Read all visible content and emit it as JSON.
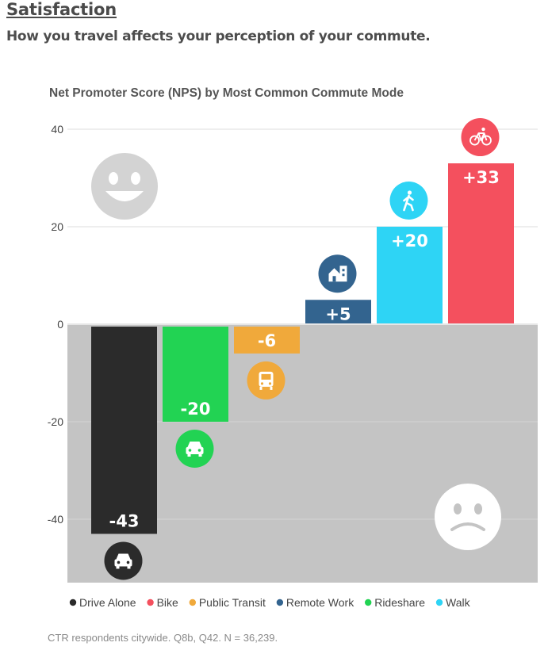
{
  "header": {
    "title": "Satisfaction",
    "subtitle": "How you travel affects your perception of your commute."
  },
  "footer": {
    "note": "CTR respondents citywide. Q8b, Q42. N = 36,239."
  },
  "chart_data": {
    "type": "bar",
    "title": "Net Promoter Score (NPS) by Most Common Commute Mode",
    "xlabel": "",
    "ylabel": "",
    "ylim": [
      -53,
      40
    ],
    "yticks": [
      40,
      20,
      0,
      -20,
      -40
    ],
    "grid": true,
    "negative_region_color": "#c4c4c4",
    "legend_position": "bottom",
    "categories": [
      "Drive Alone",
      "Rideshare",
      "Public Transit",
      "Remote Work",
      "Walk",
      "Bike"
    ],
    "values": [
      -43,
      -20,
      -6,
      5,
      20,
      33
    ],
    "value_labels": [
      "-43",
      "-20",
      "-6",
      "+5",
      "+20",
      "+33"
    ],
    "colors": [
      "#2b2b2b",
      "#22d353",
      "#f0a93b",
      "#33648f",
      "#2ed4f5",
      "#f4505e"
    ],
    "icons": [
      "car-icon",
      "rideshare-car-icon",
      "bus-icon",
      "home-office-icon",
      "walk-icon",
      "bike-icon"
    ],
    "legend": [
      {
        "label": "Drive Alone",
        "color": "#2b2b2b"
      },
      {
        "label": "Bike",
        "color": "#f4505e"
      },
      {
        "label": "Public Transit",
        "color": "#f0a93b"
      },
      {
        "label": "Remote Work",
        "color": "#33648f"
      },
      {
        "label": "Rideshare",
        "color": "#22d353"
      },
      {
        "label": "Walk",
        "color": "#2ed4f5"
      }
    ],
    "decorations": [
      "happy-face-icon",
      "sad-face-icon"
    ]
  }
}
